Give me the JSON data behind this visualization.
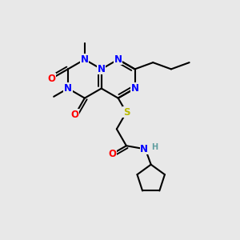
{
  "background_color": "#e8e8e8",
  "atom_colors": {
    "N": "#0000ff",
    "O": "#ff0000",
    "S": "#b8b800",
    "C": "#000000",
    "H": "#5f9ea0"
  },
  "bond_color": "#000000",
  "figsize": [
    3.0,
    3.0
  ],
  "dpi": 100
}
